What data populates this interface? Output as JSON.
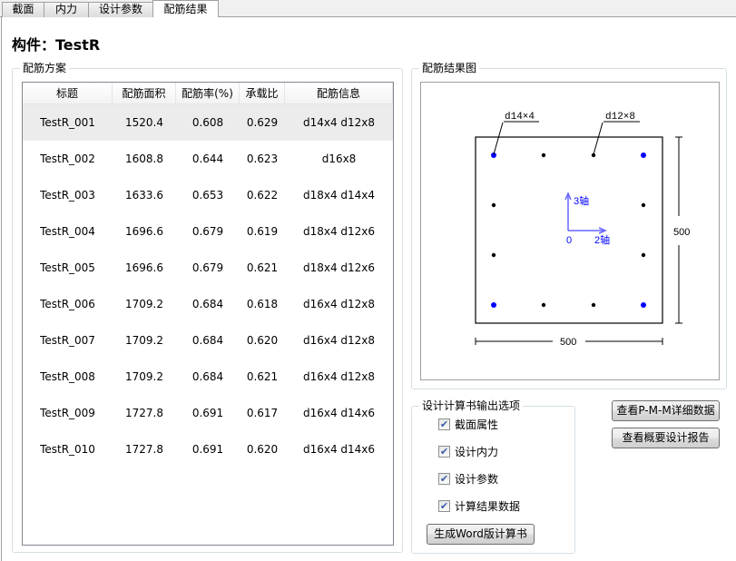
{
  "tabs": [
    {
      "label": "截面"
    },
    {
      "label": "内力"
    },
    {
      "label": "设计参数"
    },
    {
      "label": "配筋结果",
      "active": true
    }
  ],
  "component_title": "构件：TestR",
  "scheme_group": {
    "label": "配筋方案",
    "columns": [
      "标题",
      "配筋面积",
      "配筋率(%)",
      "承载比",
      "配筋信息"
    ],
    "rows": [
      [
        "TestR_001",
        "1520.4",
        "0.608",
        "0.629",
        "d14x4 d12x8"
      ],
      [
        "TestR_002",
        "1608.8",
        "0.644",
        "0.623",
        "d16x8"
      ],
      [
        "TestR_003",
        "1633.6",
        "0.653",
        "0.622",
        "d18x4 d14x4"
      ],
      [
        "TestR_004",
        "1696.6",
        "0.679",
        "0.619",
        "d18x4 d12x6"
      ],
      [
        "TestR_005",
        "1696.6",
        "0.679",
        "0.621",
        "d18x4 d12x6"
      ],
      [
        "TestR_006",
        "1709.2",
        "0.684",
        "0.618",
        "d16x4 d12x8"
      ],
      [
        "TestR_007",
        "1709.2",
        "0.684",
        "0.620",
        "d16x4 d12x8"
      ],
      [
        "TestR_008",
        "1709.2",
        "0.684",
        "0.621",
        "d16x4 d12x8"
      ],
      [
        "TestR_009",
        "1727.8",
        "0.691",
        "0.617",
        "d16x4 d14x6"
      ],
      [
        "TestR_010",
        "1727.8",
        "0.691",
        "0.620",
        "d16x4 d14x6"
      ]
    ],
    "selected_row": 0
  },
  "diagram_group": {
    "label": "配筋结果图",
    "corner_bar_label": "d14×4",
    "side_bar_label": "d12×8",
    "width_dim": "500",
    "height_dim": "500",
    "axis3_label": "3轴",
    "axis2_label": "2轴",
    "origin_label": "0",
    "colors": {
      "corner_bar": "#0000ff",
      "side_bar": "#000000",
      "axis": "#6666ff"
    }
  },
  "output_group": {
    "label": "设计计算书输出选项",
    "options": [
      {
        "label": "截面属性",
        "checked": true
      },
      {
        "label": "设计内力",
        "checked": true
      },
      {
        "label": "设计参数",
        "checked": true
      },
      {
        "label": "计算结果数据",
        "checked": true
      }
    ],
    "generate_button": "生成Word版计算书"
  },
  "buttons": {
    "pmm_detail": "查看P-M-M详细数据",
    "summary_report": "查看概要设计报告"
  }
}
